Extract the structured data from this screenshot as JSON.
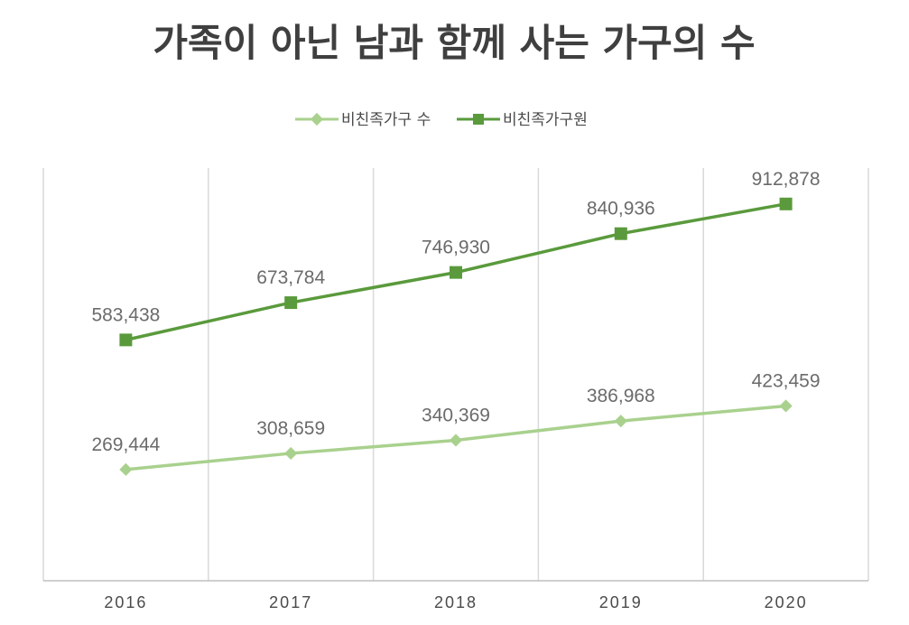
{
  "chart_data": {
    "type": "line",
    "title": "가족이 아닌 남과 함께 사는 가구의 수",
    "categories": [
      "2016",
      "2017",
      "2018",
      "2019",
      "2020"
    ],
    "series": [
      {
        "name": "비친족가구 수",
        "values": [
          269444,
          308659,
          340369,
          386968,
          423459
        ],
        "value_labels": [
          "269,444",
          "308,659",
          "340,369",
          "386,968",
          "423,459"
        ],
        "color": "#a9d18e",
        "marker": "diamond"
      },
      {
        "name": "비친족가구원",
        "values": [
          583438,
          673784,
          746930,
          840936,
          912878
        ],
        "value_labels": [
          "583,438",
          "673,784",
          "746,930",
          "840,936",
          "912,878"
        ],
        "color": "#5a9a3c",
        "marker": "square"
      }
    ],
    "ylim": [
      0,
      1000000
    ],
    "grid": "vertical",
    "legend": "top-center",
    "xlabel": "",
    "ylabel": ""
  }
}
